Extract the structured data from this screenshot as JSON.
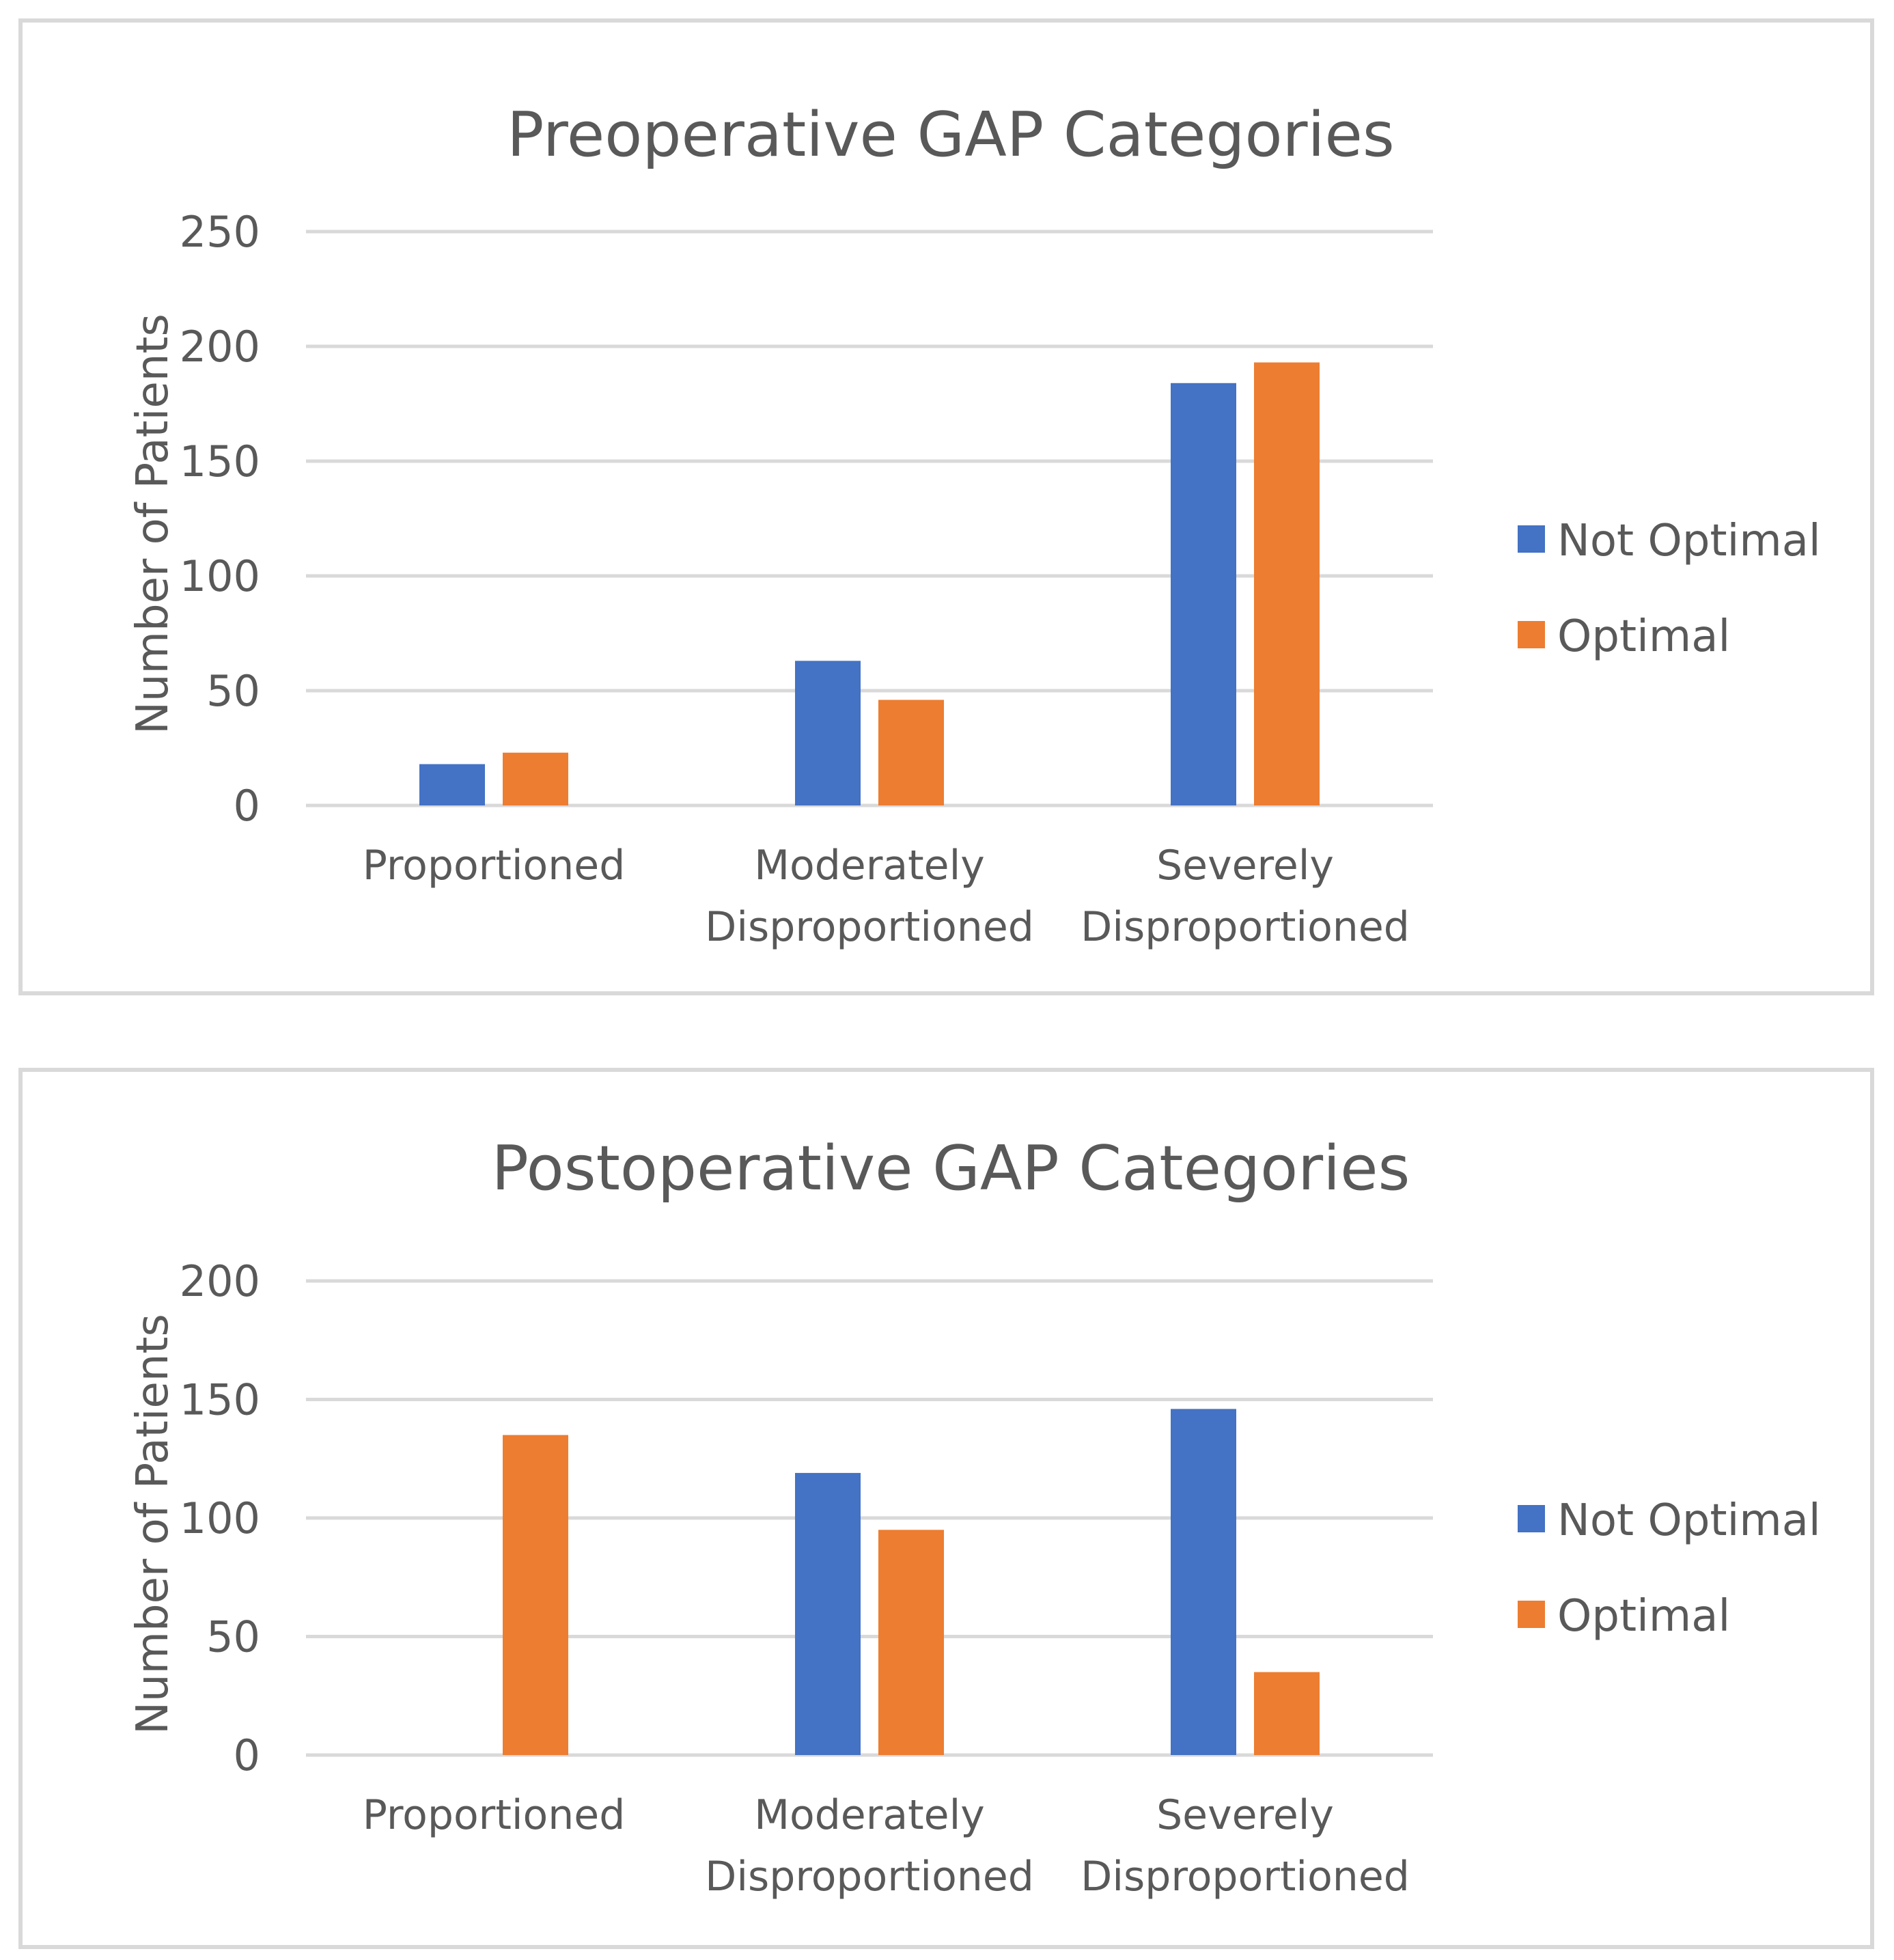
{
  "colors": {
    "not_optimal": "#4472c4",
    "optimal": "#ed7d31",
    "grid": "#d9d9d9",
    "text": "#595959"
  },
  "chart_data": [
    {
      "type": "bar",
      "title": "Preoperative GAP Categories",
      "ylabel": "Number of Patients",
      "xlabel": "",
      "ylim": [
        0,
        250
      ],
      "yticks": [
        0,
        50,
        100,
        150,
        200,
        250
      ],
      "grid": true,
      "legend_position": "right",
      "categories": [
        {
          "line1": "Proportioned",
          "line2": ""
        },
        {
          "line1": "Moderately",
          "line2": "Disproportioned"
        },
        {
          "line1": "Severely",
          "line2": "Disproportioned"
        }
      ],
      "series": [
        {
          "name": "Not Optimal",
          "values": [
            18,
            63,
            184
          ]
        },
        {
          "name": "Optimal",
          "values": [
            23,
            46,
            193
          ]
        }
      ]
    },
    {
      "type": "bar",
      "title": "Postoperative GAP Categories",
      "ylabel": "Number of Patients",
      "xlabel": "",
      "ylim": [
        0,
        200
      ],
      "yticks": [
        0,
        50,
        100,
        150,
        200
      ],
      "grid": true,
      "legend_position": "right",
      "categories": [
        {
          "line1": "Proportioned",
          "line2": ""
        },
        {
          "line1": "Moderately",
          "line2": "Disproportioned"
        },
        {
          "line1": "Severely",
          "line2": "Disproportioned"
        }
      ],
      "series": [
        {
          "name": "Not Optimal",
          "values": [
            0,
            119,
            146
          ]
        },
        {
          "name": "Optimal",
          "values": [
            135,
            95,
            35
          ]
        }
      ]
    }
  ]
}
